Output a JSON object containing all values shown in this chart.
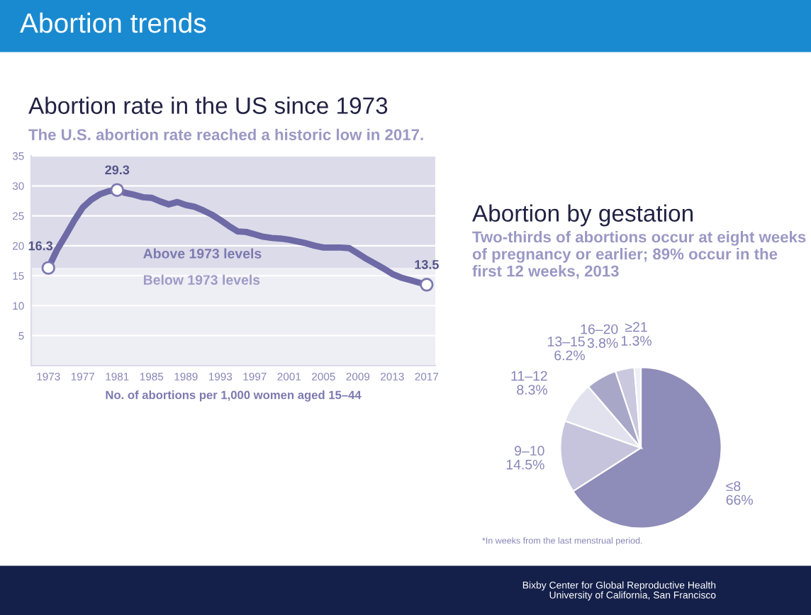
{
  "chart_data": [
    {
      "type": "line",
      "title": "Abortion rate in the US since 1973",
      "subtitle": "The U.S. abortion rate reached a historic low in 2017.",
      "xlabel": "No. of abortions per 1,000 women aged 15–44",
      "x": [
        1973,
        1974,
        1975,
        1976,
        1977,
        1978,
        1979,
        1980,
        1981,
        1982,
        1983,
        1984,
        1985,
        1986,
        1987,
        1988,
        1989,
        1990,
        1991,
        1992,
        1993,
        1994,
        1995,
        1996,
        1997,
        1998,
        1999,
        2000,
        2001,
        2002,
        2003,
        2004,
        2005,
        2006,
        2007,
        2008,
        2009,
        2010,
        2011,
        2012,
        2013,
        2014,
        2015,
        2016,
        2017
      ],
      "series": [
        {
          "color": "#6e6aa6",
          "values": [
            16.3,
            19.3,
            21.7,
            24.2,
            26.4,
            27.7,
            28.6,
            29.1,
            29.3,
            28.8,
            28.5,
            28.1,
            28.0,
            27.4,
            26.9,
            27.3,
            26.8,
            26.5,
            25.9,
            25.2,
            24.3,
            23.3,
            22.4,
            22.3,
            21.9,
            21.5,
            21.3,
            21.2,
            21.0,
            20.7,
            20.4,
            20.0,
            19.7,
            19.7,
            19.7,
            19.6,
            18.7,
            17.8,
            17.0,
            16.2,
            15.3,
            14.7,
            14.3,
            13.9,
            13.5
          ]
        }
      ],
      "xlim": [
        1971,
        2018
      ],
      "ylim": [
        0,
        35
      ],
      "xticks": [
        1973,
        1977,
        1981,
        1985,
        1989,
        1993,
        1997,
        2001,
        2005,
        2009,
        2013,
        2017
      ],
      "yticks": [
        5,
        10,
        15,
        20,
        25,
        30,
        35
      ],
      "grid": "y",
      "marker": "none",
      "line_style": "solid",
      "bands": [
        {
          "axis": "y",
          "from": 16.3,
          "to": 35,
          "label": "Above 1973 levels",
          "color": "#dcdbe9"
        },
        {
          "axis": "y",
          "from": 0,
          "to": 16.3,
          "label": "Below 1973 levels",
          "color": "#eeeef5"
        }
      ],
      "annotations": [
        "Abortion trends",
        {
          "text": "16.3",
          "x": 1973,
          "y": 16.3
        },
        {
          "text": "29.3",
          "x": 1981,
          "y": 29.3
        },
        {
          "text": "13.5",
          "x": 2017,
          "y": 13.5
        },
        "Bixby Center for Global Reproductive Health\nUniversity of California, San Francisco"
      ]
    },
    {
      "type": "pie",
      "title": "Abortion by gestation",
      "subtitle": "Two-thirds of abortions occur at eight weeks of pregnancy or earlier; 89% occur in the first 12 weeks, 2013",
      "categories": [
        "≤8",
        "9–10",
        "11–12",
        "13–15",
        "16–20",
        "≥21"
      ],
      "values": [
        66,
        14.5,
        8.3,
        6.2,
        3.8,
        1.3
      ],
      "colors": [
        "#8e8cb8",
        "#c5c4dc",
        "#e2e2ee",
        "#a8a7c8",
        "#c9c8de",
        "#eeeef5"
      ],
      "value_labels": [
        "66%",
        "14.5%",
        "8.3%",
        "6.2%",
        "3.8%",
        "1.3%"
      ],
      "annotations": [
        "*In weeks from the last menstrual period."
      ]
    }
  ]
}
